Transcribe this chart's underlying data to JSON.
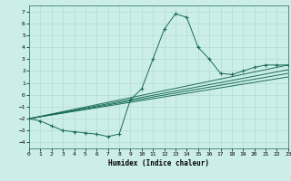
{
  "xlabel": "Humidex (Indice chaleur)",
  "ylabel": "",
  "xlim": [
    0,
    23
  ],
  "ylim": [
    -4.5,
    7.5
  ],
  "yticks": [
    -4,
    -3,
    -2,
    -1,
    0,
    1,
    2,
    3,
    4,
    5,
    6,
    7
  ],
  "xticks": [
    0,
    1,
    2,
    3,
    4,
    5,
    6,
    7,
    8,
    9,
    10,
    11,
    12,
    13,
    14,
    15,
    16,
    17,
    18,
    19,
    20,
    21,
    22,
    23
  ],
  "background_color": "#cceee8",
  "line_color": "#1a6b5a",
  "grid_color": "#aad8d0",
  "main_series": [
    [
      0,
      -2.0
    ],
    [
      1,
      -2.2
    ],
    [
      2,
      -2.6
    ],
    [
      3,
      -3.0
    ],
    [
      4,
      -3.1
    ],
    [
      5,
      -3.2
    ],
    [
      6,
      -3.3
    ],
    [
      7,
      -3.5
    ],
    [
      8,
      -3.3
    ],
    [
      9,
      -0.4
    ],
    [
      10,
      0.5
    ],
    [
      11,
      3.0
    ],
    [
      12,
      5.5
    ],
    [
      13,
      6.8
    ],
    [
      14,
      6.5
    ],
    [
      15,
      4.0
    ],
    [
      16,
      3.0
    ],
    [
      17,
      1.8
    ],
    [
      18,
      1.7
    ],
    [
      19,
      2.0
    ],
    [
      20,
      2.3
    ],
    [
      21,
      2.5
    ],
    [
      22,
      2.5
    ],
    [
      23,
      2.5
    ]
  ],
  "straight_lines": [
    [
      [
        0,
        -2.0
      ],
      [
        23,
        2.5
      ]
    ],
    [
      [
        0,
        -2.0
      ],
      [
        23,
        2.1
      ]
    ],
    [
      [
        0,
        -2.0
      ],
      [
        23,
        1.8
      ]
    ],
    [
      [
        0,
        -2.0
      ],
      [
        23,
        1.5
      ]
    ]
  ]
}
